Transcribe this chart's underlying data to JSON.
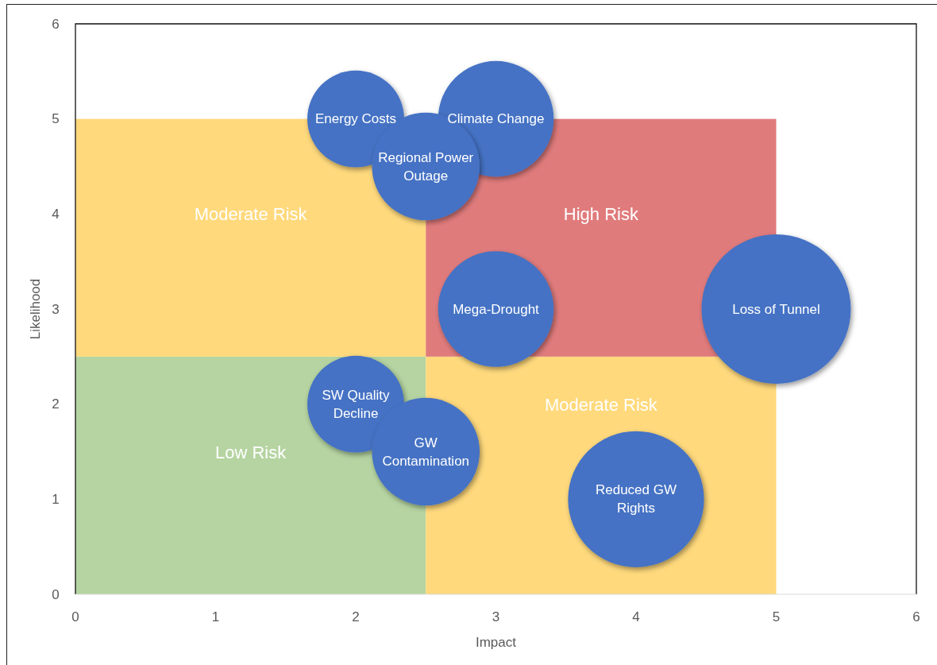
{
  "chart_data": {
    "type": "bubble",
    "xlabel": "Impact",
    "ylabel": "Likelihood",
    "xlim": [
      0,
      6
    ],
    "ylim": [
      0,
      6
    ],
    "xticks": [
      0,
      1,
      2,
      3,
      4,
      5,
      6
    ],
    "yticks": [
      0,
      1,
      2,
      3,
      4,
      5,
      6
    ],
    "stacked": true,
    "series": [
      {
        "type": "bar",
        "x": [
          1.25,
          3.75
        ],
        "values": [
          2.5,
          2.5
        ],
        "colors": [
          "#b5d4a1",
          "#ffd97c"
        ],
        "value_labels": [
          "Low Risk",
          "Moderate Risk"
        ]
      },
      {
        "type": "bar",
        "x": [
          1.25,
          3.75
        ],
        "values": [
          2.5,
          2.5
        ],
        "colors": [
          "#ffd97c",
          "#e07b7c"
        ],
        "value_labels": [
          "Moderate Risk",
          "High Risk"
        ]
      },
      {
        "name": "Energy Costs",
        "color": "#4472c4",
        "x": [
          2
        ],
        "values": [
          5
        ],
        "sizes": [
          0.42
        ]
      },
      {
        "name": "Climate Change",
        "color": "#4472c4",
        "x": [
          3
        ],
        "values": [
          5
        ],
        "sizes": [
          0.6
        ]
      },
      {
        "name": "Regional Power Outage",
        "color": "#4472c4",
        "x": [
          2.5
        ],
        "values": [
          4.5
        ],
        "sizes": [
          0.52
        ]
      },
      {
        "name": "Mega-Drought",
        "color": "#4472c4",
        "x": [
          3
        ],
        "values": [
          3
        ],
        "sizes": [
          0.6
        ]
      },
      {
        "name": "Loss of Tunnel",
        "color": "#4472c4",
        "x": [
          5
        ],
        "values": [
          3
        ],
        "sizes": [
          1
        ]
      },
      {
        "name": "SW Quality Decline",
        "color": "#4472c4",
        "x": [
          2
        ],
        "values": [
          2
        ],
        "sizes": [
          0.42
        ]
      },
      {
        "name": "GW Contamination",
        "color": "#4472c4",
        "x": [
          2.5
        ],
        "values": [
          1.5
        ],
        "sizes": [
          0.52
        ]
      },
      {
        "name": "Reduced GW Rights",
        "color": "#4472c4",
        "x": [
          4
        ],
        "values": [
          1
        ],
        "sizes": [
          0.83
        ]
      }
    ]
  }
}
